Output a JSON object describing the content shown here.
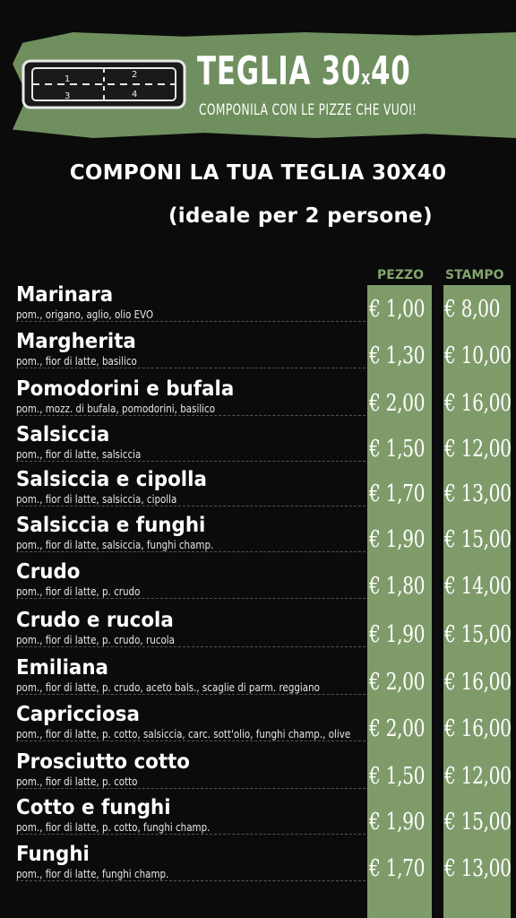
{
  "banner": {
    "title_main": "TEGLIA 30",
    "title_x": "x",
    "title_end": "40",
    "subtitle": "COMPONILA CON LE PIZZE CHE VUOI!",
    "tray_labels": [
      "1",
      "2",
      "3",
      "4"
    ]
  },
  "heading": {
    "line1": "COMPONI LA TUA TEGLIA 30X40",
    "line2": "(ideale per 2 persone)"
  },
  "columns": {
    "pezzo": "PEZZO",
    "stampo": "STAMPO"
  },
  "colors": {
    "banner": "#6f8f5e",
    "column": "#7f9b6a",
    "header_text": "#82a56c"
  },
  "items": [
    {
      "name": "Marinara",
      "ingredients": "pom., origano, aglio, olio EVO",
      "pezzo": "€ 1,00",
      "stampo": "€ 8,00"
    },
    {
      "name": "Margherita",
      "ingredients": "pom., fior di latte, basilico",
      "pezzo": "€ 1,30",
      "stampo": "€ 10,00"
    },
    {
      "name": "Pomodorini e bufala",
      "ingredients": "pom., mozz. di bufala, pomodorini, basilico",
      "pezzo": "€ 2,00",
      "stampo": "€ 16,00"
    },
    {
      "name": "Salsiccia",
      "ingredients": "pom., fior di latte, salsiccia",
      "pezzo": "€ 1,50",
      "stampo": "€ 12,00"
    },
    {
      "name": "Salsiccia e cipolla",
      "ingredients": "pom., fior di latte, salsiccia, cipolla",
      "pezzo": "€ 1,70",
      "stampo": "€ 13,00"
    },
    {
      "name": "Salsiccia e funghi",
      "ingredients": "pom., fior di latte, salsiccia, funghi champ.",
      "pezzo": "€ 1,90",
      "stampo": "€ 15,00"
    },
    {
      "name": "Crudo",
      "ingredients": "pom., fior di latte, p. crudo",
      "pezzo": "€ 1,80",
      "stampo": "€ 14,00"
    },
    {
      "name": "Crudo e rucola",
      "ingredients": "pom., fior di latte, p. crudo, rucola",
      "pezzo": "€ 1,90",
      "stampo": "€ 15,00"
    },
    {
      "name": "Emiliana",
      "ingredients": "pom., fior di latte, p. crudo, aceto bals., scaglie di parm. reggiano",
      "pezzo": "€ 2,00",
      "stampo": "€ 16,00"
    },
    {
      "name": "Capricciosa",
      "ingredients": "pom., fior di latte, p. cotto, salsiccia, carc. sott'olio, funghi champ., olive",
      "pezzo": "€ 2,00",
      "stampo": "€ 16,00"
    },
    {
      "name": "Prosciutto cotto",
      "ingredients": "pom., fior di latte, p. cotto",
      "pezzo": "€ 1,50",
      "stampo": "€ 12,00"
    },
    {
      "name": "Cotto e funghi",
      "ingredients": "pom., fior di latte, p. cotto, funghi champ.",
      "pezzo": "€ 1,90",
      "stampo": "€ 15,00"
    },
    {
      "name": "Funghi",
      "ingredients": "pom., fior di latte, funghi champ.",
      "pezzo": "€ 1,70",
      "stampo": "€ 13,00"
    }
  ]
}
